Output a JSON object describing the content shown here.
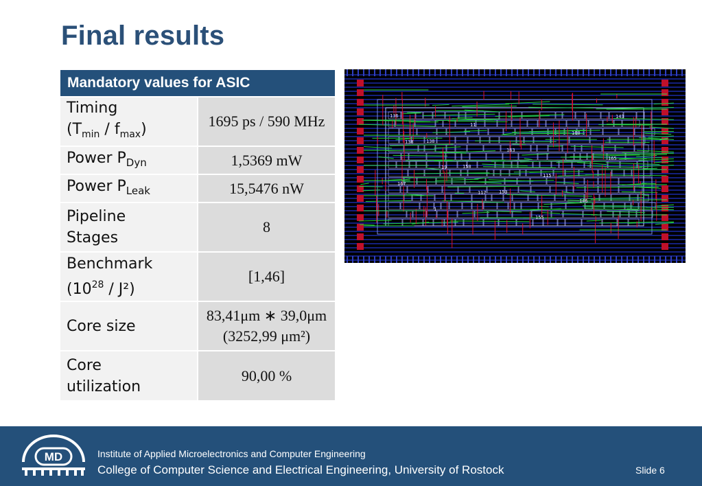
{
  "title": "Final results",
  "table": {
    "header": "Mandatory values for ASIC",
    "rows": [
      {
        "label_line1": "Timing",
        "label_line2_pre": "(T",
        "label_sub_a": "min",
        "label_mid": " / f",
        "label_sub_b": "max",
        "label_post": ")",
        "value": "1695 ps / 590 MHz"
      },
      {
        "label": "Power P",
        "label_sub": "Dyn",
        "value": "1,5369 mW"
      },
      {
        "label": "Power P",
        "label_sub": "Leak",
        "value": "15,5476 nW"
      },
      {
        "label_line1": "Pipeline",
        "label_line2": "Stages",
        "value": "8"
      },
      {
        "label_line1": "Benchmark",
        "label_line2_pre": "(10",
        "label_sup": "28",
        "label_post": " / J²)",
        "value": "[1,46]"
      },
      {
        "label": "Core size",
        "value_line1": "83,41μm ∗ 39,0μm",
        "value_line2": "(3252,99 μm²)"
      },
      {
        "label_line1": "Core",
        "label_line2": "utilization",
        "value": "90,00 %"
      }
    ]
  },
  "layout_image": {
    "cell_labels": [
      "136",
      "138",
      "150",
      "153",
      "155",
      "160",
      "165",
      "167",
      "1",
      "11",
      "163",
      "115",
      "146",
      "143",
      "138",
      "19",
      "117"
    ]
  },
  "footer": {
    "logo_text": "MD",
    "institute": "Institute of Applied Microelectronics and Computer Engineering",
    "college": "College of Computer Science and Electrical Engineering, University of Rostock",
    "slide": "Slide 6"
  },
  "colors": {
    "title": "#2b5078",
    "header_bg": "#24507a",
    "footer_bg": "#24507a",
    "label_bg": "#f2f2f2",
    "value_bg": "#dcdcdc"
  }
}
